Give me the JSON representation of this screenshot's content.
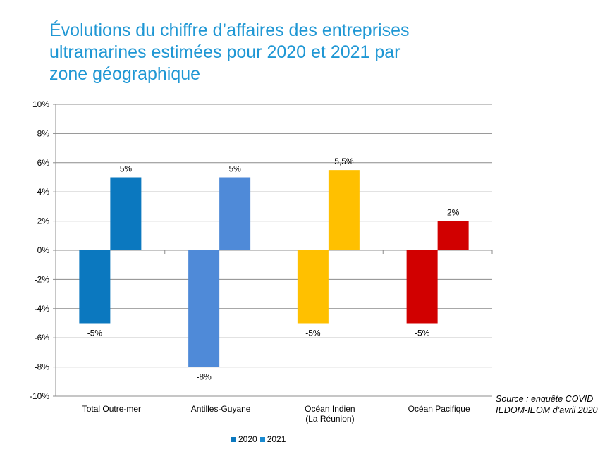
{
  "title_lines": [
    "Évolutions du chiffre d’affaires des entreprises",
    "ultramarines estimées pour 2020 et 2021 par",
    "zone géographique"
  ],
  "source_lines": [
    "Source : enquête COVID",
    "IEDOM-IEOM d’avril 2020"
  ],
  "legend": [
    {
      "label": "2020",
      "color": "#0b78bf"
    },
    {
      "label": "2021",
      "color": "#1a8ad0"
    }
  ],
  "chart_data": {
    "type": "bar",
    "title": "Évolutions du chiffre d’affaires des entreprises ultramarines estimées pour 2020 et 2021 par zone géographique",
    "categories": [
      [
        "Total Outre-mer"
      ],
      [
        "Antilles-Guyane"
      ],
      [
        "Océan Indien",
        "(La Réunion)"
      ],
      [
        "Océan Pacifique"
      ]
    ],
    "series": [
      {
        "name": "2020",
        "values": [
          -5,
          -8,
          -5,
          -5
        ],
        "labels": [
          "-5%",
          "-8%",
          "-5%",
          "-5%"
        ]
      },
      {
        "name": "2021",
        "values": [
          5,
          5,
          5.5,
          2
        ],
        "labels": [
          "5%",
          "5%",
          "5,5%",
          "2%"
        ]
      }
    ],
    "bar_colors": [
      [
        "#0b78bf",
        "#0b78bf"
      ],
      [
        "#4f8ad8",
        "#4f8ad8"
      ],
      [
        "#ffc000",
        "#ffc000"
      ],
      [
        "#d10000",
        "#d10000"
      ]
    ],
    "ylim": [
      -10,
      10
    ],
    "ytick_step": 2,
    "ytick_labels": [
      "10%",
      "8%",
      "6%",
      "4%",
      "2%",
      "0%",
      "-2%",
      "-4%",
      "-6%",
      "-8%",
      "-10%"
    ],
    "grid": true,
    "legend_position": "bottom",
    "xlabel": "",
    "ylabel": ""
  }
}
